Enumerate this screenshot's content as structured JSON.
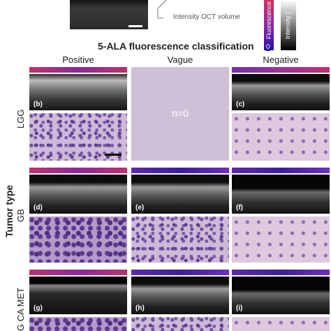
{
  "header": {
    "intensity_label": "Intensity OCT volume",
    "colorbar_zero": "0",
    "colorbar_fluor": "Fluorescence",
    "colorbar_intensity": "Intensity ("
  },
  "title": "5-ALA fluorescence classification",
  "columns": [
    "Positive",
    "Vague",
    "Negative"
  ],
  "row_axis_label": "Tumor type",
  "rows": [
    {
      "label": "LGG",
      "panels": [
        "(b)",
        "n=0",
        "(c)"
      ]
    },
    {
      "label": "GB",
      "panels": [
        "(d)",
        "(e)",
        "(f)"
      ]
    },
    {
      "label": "G CA MET",
      "panels": [
        "(g)",
        "(h)",
        "(i)"
      ]
    }
  ],
  "colors": {
    "fluor_positive": "#c0306a",
    "fluor_negative": "#5a2ab0",
    "empty_panel": "#cfc0d8"
  }
}
